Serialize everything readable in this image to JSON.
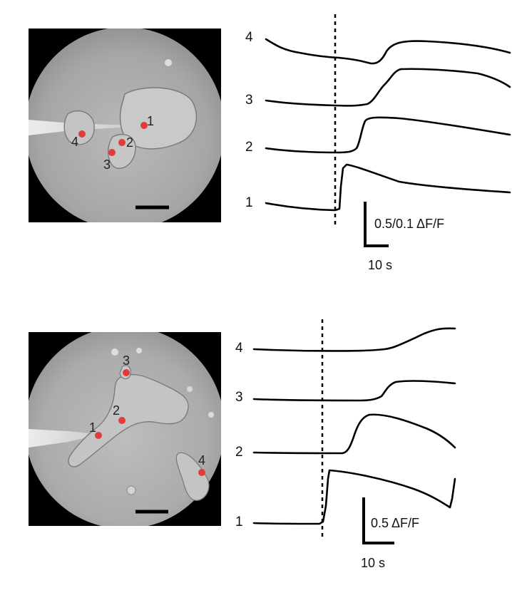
{
  "panel_a": {
    "trace_labels": [
      "4",
      "3",
      "2",
      "1"
    ],
    "cell_labels": [
      "1",
      "2",
      "3",
      "4"
    ],
    "scale_y": "0.5/0.1 ΔF/F",
    "scale_x": "10 s"
  },
  "panel_b": {
    "trace_labels": [
      "4",
      "3",
      "2",
      "1"
    ],
    "cell_labels": [
      "3",
      "2",
      "1",
      "4"
    ],
    "scale_y": "0.5 ΔF/F",
    "scale_x": "10 s"
  },
  "colors": {
    "marker": "#e23b3b",
    "trace": "#000000"
  }
}
